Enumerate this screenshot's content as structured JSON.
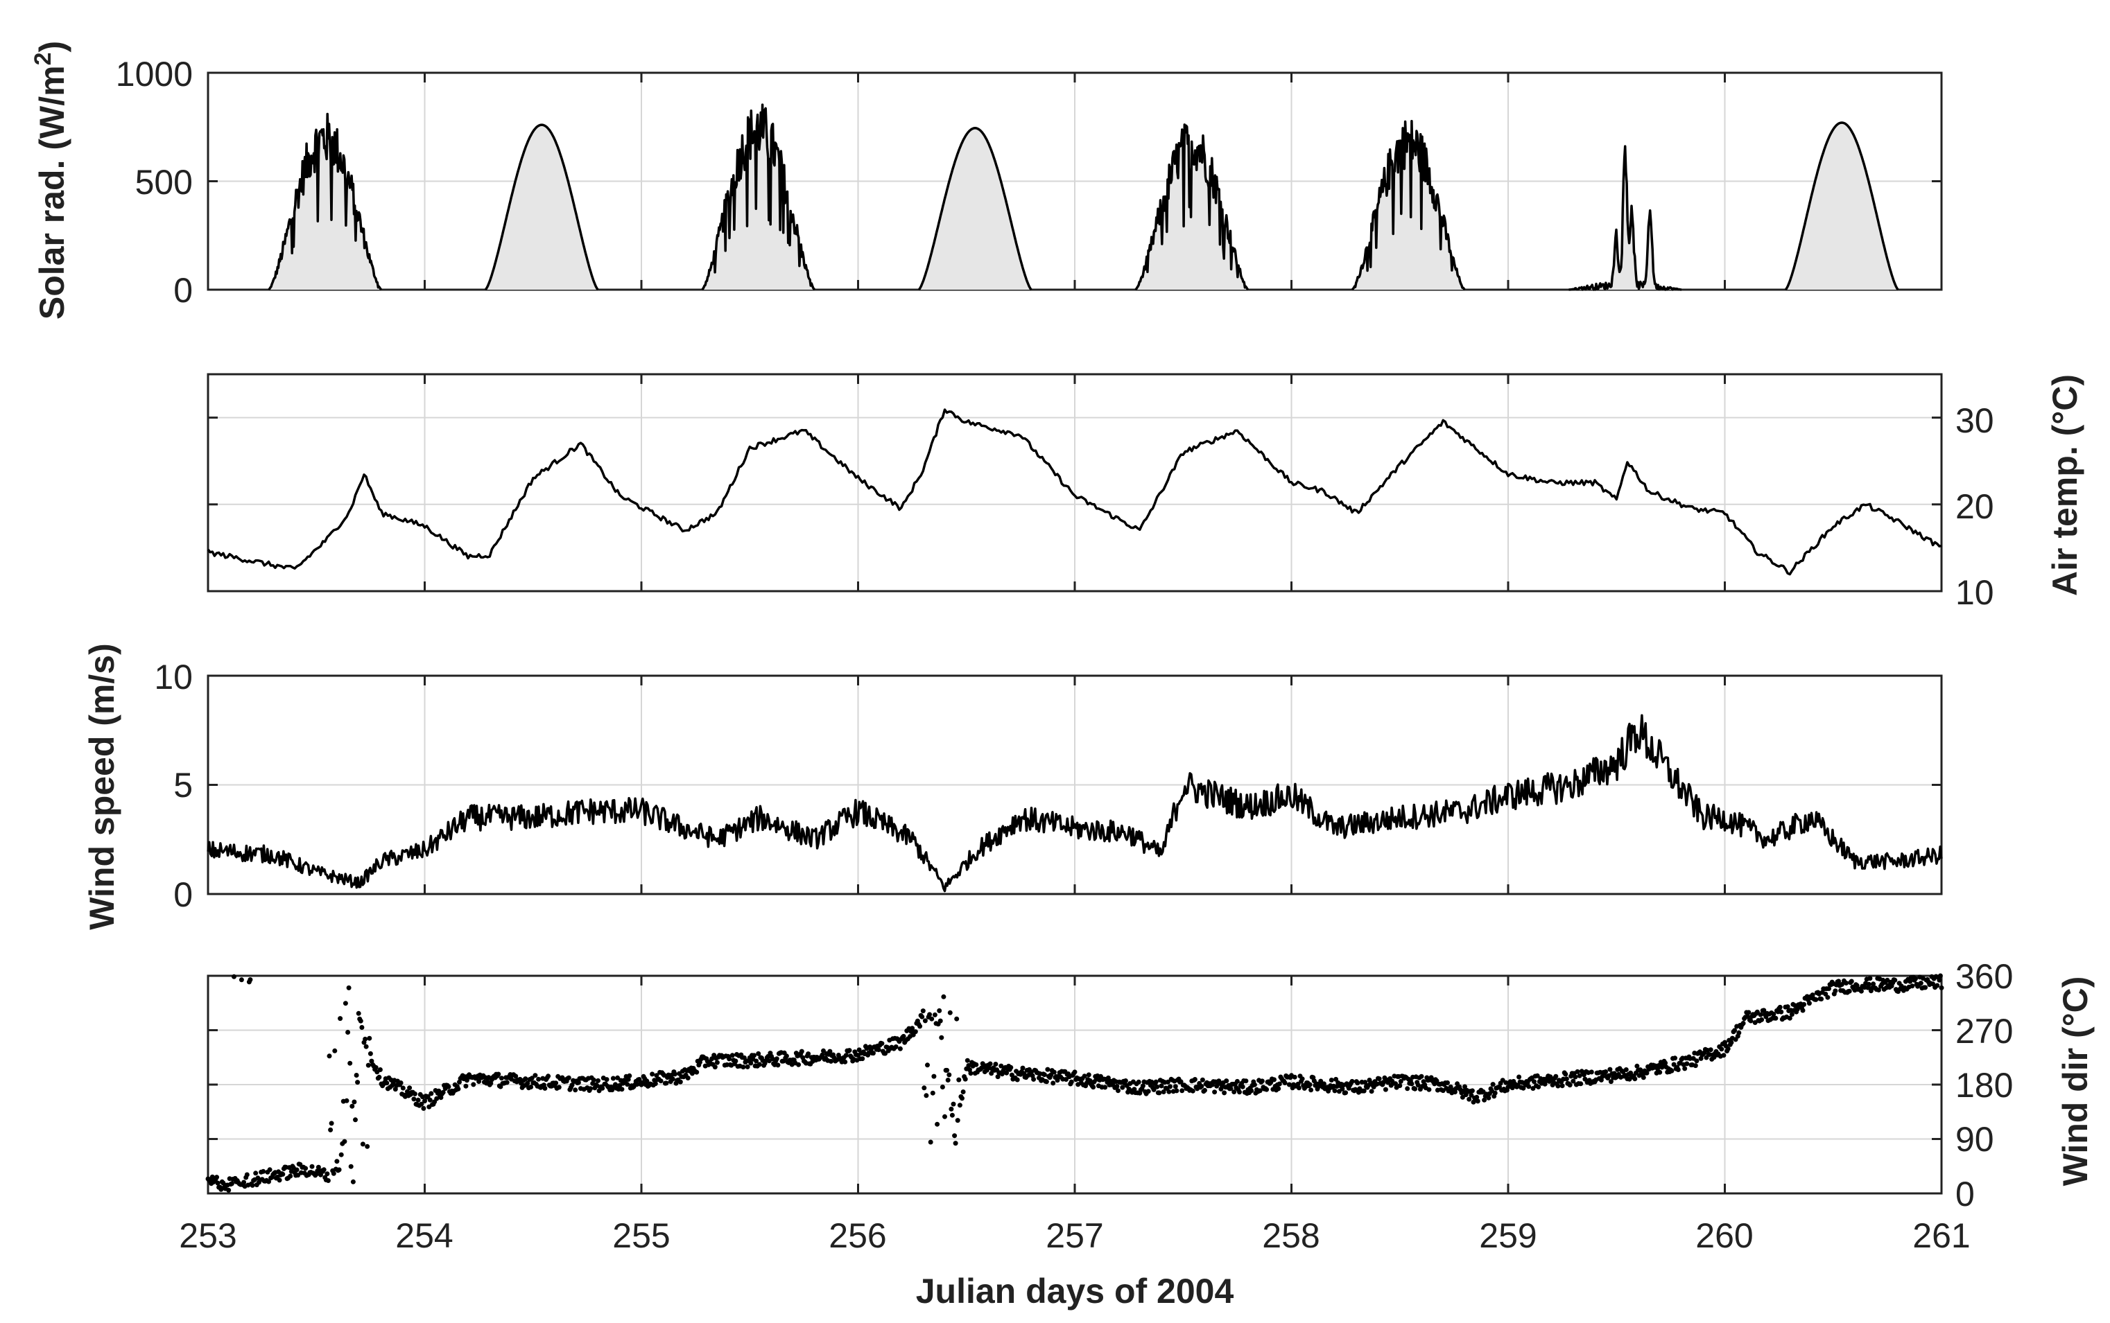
{
  "figure": {
    "xlabel": "Julian days of 2004",
    "xticks": [
      "253",
      "254",
      "255",
      "256",
      "257",
      "258",
      "259",
      "260",
      "261"
    ]
  },
  "panels": {
    "solar": {
      "ylabel_main": "Solar rad. (W/m",
      "ylabel_sup": "2",
      "ylabel_end": ")",
      "yticks": [
        "0",
        "500",
        "1000"
      ]
    },
    "air": {
      "ylabel": "Air temp. (°C)",
      "yticks": [
        "10",
        "20",
        "30"
      ]
    },
    "wind": {
      "ylabel": "Wind speed (m/s)",
      "yticks": [
        "0",
        "5",
        "10"
      ]
    },
    "dir": {
      "ylabel": "Wind dir (°C)",
      "yticks": [
        "0",
        "90",
        "180",
        "270",
        "360"
      ]
    }
  },
  "chart_data": [
    {
      "type": "area",
      "ylabel": "Solar rad. (W/m2)",
      "xlabel": "",
      "xlim": [
        253,
        261
      ],
      "ylim": [
        0,
        1000
      ],
      "grid": true,
      "fill": "#e6e6e6",
      "days": [
        {
          "day": 253,
          "rise": 253.28,
          "set": 253.8,
          "peak_x": 253.6,
          "peak": 820,
          "profile": "ragged"
        },
        {
          "day": 254,
          "rise": 254.28,
          "set": 254.8,
          "peak_x": 254.55,
          "peak": 760,
          "profile": "smooth"
        },
        {
          "day": 255,
          "rise": 255.28,
          "set": 255.8,
          "peak_x": 255.55,
          "peak": 870,
          "profile": "ragged"
        },
        {
          "day": 256,
          "rise": 256.28,
          "set": 256.8,
          "peak_x": 256.55,
          "peak": 745,
          "profile": "smooth"
        },
        {
          "day": 257,
          "rise": 257.28,
          "set": 257.8,
          "peak_x": 257.55,
          "peak": 790,
          "profile": "ragged"
        },
        {
          "day": 258,
          "rise": 258.28,
          "set": 258.8,
          "peak_x": 258.55,
          "peak": 800,
          "profile": "ragged"
        },
        {
          "day": 259,
          "rise": 259.28,
          "set": 259.8,
          "peak_x": 259.5,
          "peak": 720,
          "profile": "cloudy"
        },
        {
          "day": 260,
          "rise": 260.28,
          "set": 260.8,
          "peak_x": 260.55,
          "peak": 770,
          "profile": "smooth"
        }
      ]
    },
    {
      "type": "line",
      "ylabel": "Air temp. (°C)",
      "xlabel": "",
      "xlim": [
        253,
        261
      ],
      "ylim": [
        10,
        35
      ],
      "grid": true,
      "x": [
        253,
        253.2,
        253.4,
        253.55,
        253.65,
        253.72,
        253.8,
        254.0,
        254.2,
        254.3,
        254.5,
        254.72,
        254.9,
        255.2,
        255.35,
        255.5,
        255.75,
        256.0,
        256.2,
        256.3,
        256.4,
        256.5,
        256.75,
        257.0,
        257.15,
        257.3,
        257.5,
        257.75,
        258.0,
        258.15,
        258.3,
        258.5,
        258.7,
        258.85,
        259.0,
        259.2,
        259.4,
        259.5,
        259.55,
        259.65,
        259.75,
        259.85,
        260.0,
        260.15,
        260.3,
        260.5,
        260.65,
        260.8,
        261.0
      ],
      "y": [
        14.5,
        13.5,
        12.5,
        16.0,
        19.0,
        23.5,
        19.0,
        17.5,
        14.0,
        14.2,
        23.0,
        27.0,
        21.0,
        17.0,
        19.0,
        26.5,
        28.5,
        23.0,
        19.5,
        24.0,
        31.0,
        29.5,
        28.0,
        21.0,
        19.0,
        17.0,
        26.0,
        28.5,
        22.5,
        21.5,
        19.0,
        24.5,
        29.5,
        26.5,
        23.5,
        22.5,
        22.5,
        20.5,
        25.0,
        21.5,
        20.5,
        19.5,
        19.0,
        14.5,
        12.2,
        17.5,
        20.0,
        18.0,
        15.0
      ]
    },
    {
      "type": "line",
      "ylabel": "Wind speed (m/s)",
      "xlabel": "",
      "xlim": [
        253,
        261
      ],
      "ylim": [
        0,
        10
      ],
      "grid": true,
      "x": [
        253,
        253.3,
        253.5,
        253.7,
        253.8,
        254.0,
        254.2,
        254.5,
        254.75,
        255.0,
        255.2,
        255.35,
        255.55,
        255.8,
        256.0,
        256.25,
        256.4,
        256.55,
        256.75,
        257.0,
        257.25,
        257.4,
        257.5,
        257.65,
        257.8,
        258.0,
        258.2,
        258.5,
        258.8,
        259.0,
        259.3,
        259.5,
        259.6,
        259.75,
        259.9,
        260.0,
        260.2,
        260.4,
        260.6,
        260.8,
        261.0
      ],
      "y": [
        2.0,
        1.8,
        1.0,
        0.5,
        1.5,
        2.0,
        3.5,
        3.5,
        3.8,
        3.8,
        3.0,
        2.5,
        3.5,
        2.5,
        3.8,
        2.5,
        0.3,
        2.0,
        3.5,
        3.0,
        2.8,
        1.8,
        5.0,
        4.5,
        4.0,
        4.5,
        3.0,
        3.5,
        3.8,
        4.5,
        5.0,
        6.0,
        7.5,
        5.5,
        3.5,
        3.5,
        2.5,
        3.5,
        1.5,
        1.5,
        1.8
      ]
    },
    {
      "type": "scatter",
      "ylabel": "Wind dir (°C)",
      "xlabel": "Julian days of 2004",
      "xlim": [
        253,
        261
      ],
      "ylim": [
        0,
        360
      ],
      "grid": true,
      "x": [
        253,
        253.1,
        253.3,
        253.45,
        253.55,
        253.62,
        253.68,
        253.72,
        253.8,
        254.0,
        254.2,
        254.5,
        254.8,
        255.0,
        255.2,
        255.3,
        255.5,
        255.8,
        256.0,
        256.2,
        256.32,
        256.38,
        256.45,
        256.5,
        256.7,
        257.0,
        257.3,
        257.5,
        257.8,
        258.0,
        258.3,
        258.5,
        258.7,
        258.85,
        259.0,
        259.3,
        259.6,
        259.85,
        260.0,
        260.1,
        260.3,
        260.5,
        260.6,
        260.8,
        261.0
      ],
      "y": [
        20,
        15,
        30,
        40,
        30,
        60,
        340,
        250,
        190,
        150,
        190,
        185,
        180,
        185,
        195,
        220,
        220,
        225,
        230,
        250,
        300,
        280,
        90,
        210,
        200,
        190,
        175,
        180,
        175,
        185,
        175,
        185,
        180,
        160,
        180,
        190,
        200,
        220,
        240,
        290,
        300,
        340,
        345,
        345,
        350
      ]
    }
  ]
}
